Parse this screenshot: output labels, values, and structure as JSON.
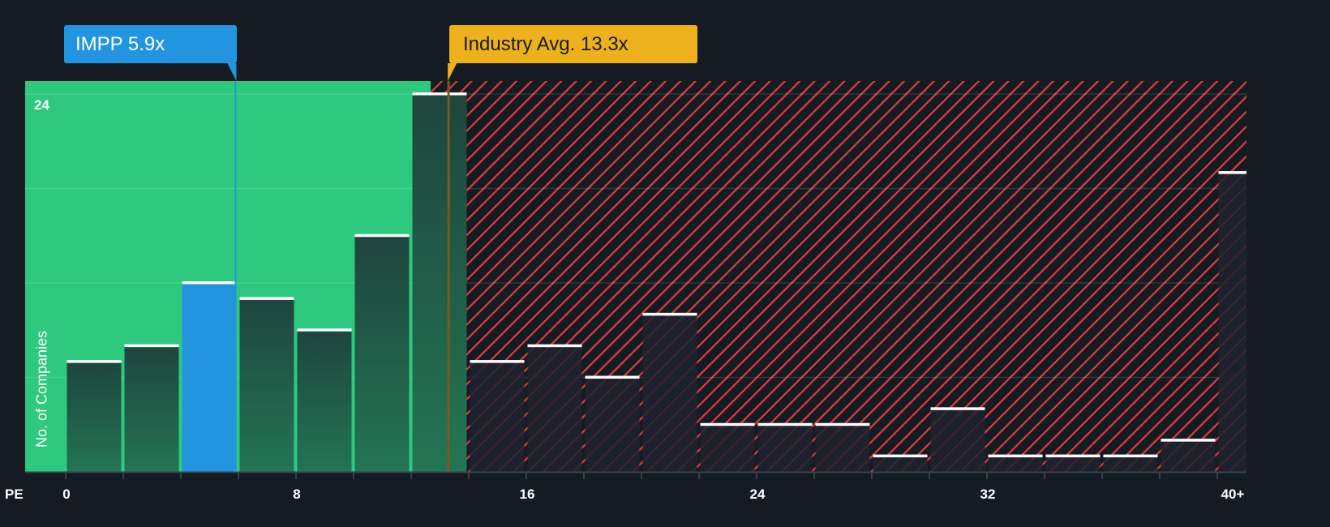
{
  "chart_data": {
    "type": "bar",
    "xlabel": "PE",
    "ylabel": "No. of Companies",
    "bin_width": 2,
    "bins": [
      "0-2",
      "2-4",
      "4-6",
      "6-8",
      "8-10",
      "10-12",
      "12-14",
      "14-16",
      "16-18",
      "18-20",
      "20-22",
      "22-24",
      "24-26",
      "26-28",
      "28-30",
      "30-32",
      "32-34",
      "34-36",
      "36-38",
      "38-40",
      "40+"
    ],
    "values": [
      7,
      8,
      12,
      11,
      9,
      15,
      24,
      7,
      8,
      6,
      10,
      3,
      3,
      3,
      1,
      4,
      1,
      1,
      1,
      2,
      19
    ],
    "highlight_bin": 2,
    "x_ticks": [
      "0",
      "8",
      "16",
      "24",
      "32",
      "40+"
    ],
    "x_tick_values": [
      0,
      8,
      16,
      24,
      32,
      40
    ],
    "y_ticks_labeled": [
      "24"
    ],
    "ylim": [
      0,
      24.8
    ],
    "grid_values": [
      6,
      12,
      18,
      24
    ],
    "company": {
      "label": "IMPP 5.9x",
      "value": 5.9,
      "color": "#2394df"
    },
    "industry": {
      "label": "Industry Avg. 13.3x",
      "value": 13.3,
      "color": "#ecb11c"
    },
    "zones": {
      "undervalued_color": "#2ec97f",
      "overvalued_color": "#e03c3c"
    }
  }
}
